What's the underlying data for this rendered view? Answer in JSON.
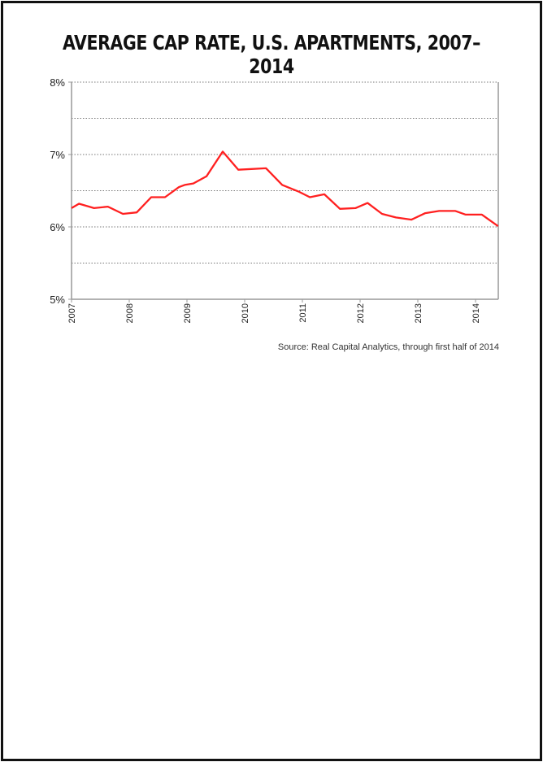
{
  "chart_data": {
    "type": "line",
    "title": "AVERAGE CAP RATE, U.S. APARTMENTS, 2007–2014",
    "source": "Source: Real Capital Analytics, through first half of 2014",
    "xlabel": "",
    "ylabel": "",
    "xlim": [
      2007,
      2014.4
    ],
    "ylim": [
      5,
      8
    ],
    "y_ticks": [
      {
        "v": 8,
        "label": "8%"
      },
      {
        "v": 7,
        "label": "7%"
      },
      {
        "v": 6,
        "label": "6%"
      },
      {
        "v": 5,
        "label": "5%"
      }
    ],
    "gridlines": [
      8,
      7.5,
      7,
      6.5,
      6,
      5.5
    ],
    "x_ticks": [
      {
        "v": 2007,
        "label": "2007"
      },
      {
        "v": 2008,
        "label": "2008"
      },
      {
        "v": 2009,
        "label": "2009"
      },
      {
        "v": 2010,
        "label": "2010"
      },
      {
        "v": 2011,
        "label": "2011"
      },
      {
        "v": 2012,
        "label": "2012"
      },
      {
        "v": 2013,
        "label": "2013"
      },
      {
        "v": 2014,
        "label": "2014"
      }
    ],
    "series": [
      {
        "name": "Average cap rate",
        "color": "#ff2020",
        "x": [
          2007.0,
          2007.13,
          2007.39,
          2007.63,
          2007.89,
          2008.13,
          2008.38,
          2008.62,
          2008.86,
          2008.96,
          2009.11,
          2009.34,
          2009.62,
          2009.89,
          2010.37,
          2010.65,
          2010.93,
          2011.13,
          2011.38,
          2011.65,
          2011.92,
          2012.13,
          2012.38,
          2012.62,
          2012.89,
          2013.13,
          2013.37,
          2013.65,
          2013.83,
          2014.11,
          2014.39
        ],
        "y": [
          6.26,
          6.32,
          6.26,
          6.28,
          6.18,
          6.2,
          6.41,
          6.41,
          6.55,
          6.58,
          6.6,
          6.7,
          7.04,
          6.79,
          6.81,
          6.58,
          6.49,
          6.41,
          6.45,
          6.25,
          6.26,
          6.33,
          6.18,
          6.13,
          6.1,
          6.19,
          6.22,
          6.22,
          6.17,
          6.17,
          6.01
        ]
      }
    ]
  }
}
